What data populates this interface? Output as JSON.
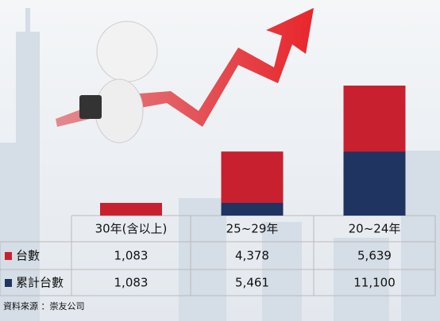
{
  "chart_data": {
    "type": "bar",
    "categories": [
      "30年(含以上)",
      "25~29年",
      "20~24年"
    ],
    "series": [
      {
        "name": "台數",
        "color": "#c8202f",
        "values": [
          1083,
          4378,
          5639
        ],
        "value_labels": [
          "1,083",
          "4,378",
          "5,639"
        ]
      },
      {
        "name": "累計台數",
        "color": "#1f3461",
        "values": [
          1083,
          5461,
          11100
        ],
        "value_labels": [
          "1,083",
          "5,461",
          "11,100"
        ]
      }
    ],
    "source": "資料來源 ：崇友公司"
  }
}
